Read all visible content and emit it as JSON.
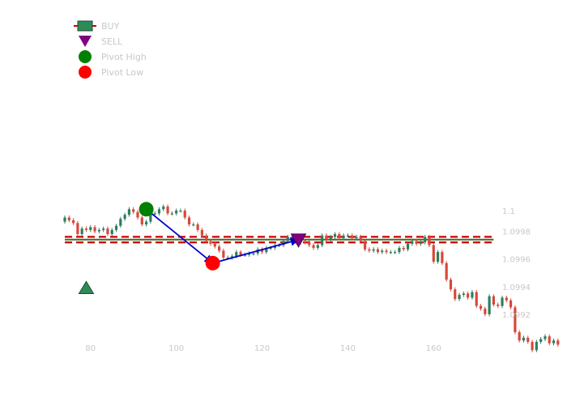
{
  "chart_data": {
    "type": "candlestick",
    "title": "",
    "xlabel": "",
    "ylabel": "",
    "xlim": [
      74,
      176
    ],
    "ylim": [
      1.09915,
      1.10085
    ],
    "x_ticks": [
      {
        "value": 80,
        "label": "80"
      },
      {
        "value": 100,
        "label": "100"
      },
      {
        "value": 120,
        "label": "120"
      },
      {
        "value": 140,
        "label": "140"
      },
      {
        "value": 160,
        "label": "160"
      }
    ],
    "y_ticks": [
      {
        "value": 1.1,
        "label": "1.1"
      },
      {
        "value": 1.09985,
        "label": "1.0998"
      },
      {
        "value": 1.09965,
        "label": "1.0996"
      },
      {
        "value": 1.09945,
        "label": "1.0994"
      },
      {
        "value": 1.09925,
        "label": "1.0992"
      }
    ],
    "y_axis_position": "right",
    "grid": false,
    "colors": {
      "up": "#2e7d5e",
      "down": "#d9473a",
      "buy": "#2e8b57",
      "sell": "#800080",
      "pivot_high": "#008000",
      "pivot_low": "#ff0000",
      "zigzag": "#0000cd",
      "level": "#556b2f",
      "band": "#cc0000"
    },
    "candles": {
      "x_start": 74,
      "opens": [
        1.09992,
        1.09995,
        1.09993,
        1.09991,
        1.09983,
        1.09987,
        1.09986,
        1.09988,
        1.09985,
        1.09986,
        1.09987,
        1.09983,
        1.09986,
        1.09989,
        1.09994,
        1.09997,
        1.10001,
        1.09999,
        1.09995,
        1.0999,
        1.09992,
        1.09998,
        1.09998,
        1.10001,
        1.10003,
        1.09998,
        1.09998,
        1.1,
        1.1,
        1.09995,
        1.0999,
        1.0999,
        1.09986,
        1.09982,
        1.09978,
        1.09976,
        1.09974,
        1.09971,
        1.09966,
        1.09966,
        1.09967,
        1.0997,
        1.09968,
        1.09968,
        1.09969,
        1.09969,
        1.09972,
        1.0997,
        1.09973,
        1.09973,
        1.09975,
        1.09975,
        1.09978,
        1.09981,
        1.09979,
        1.09977,
        1.09978,
        1.09977,
        1.09975,
        1.09973,
        1.09975,
        1.09982,
        1.09979,
        1.09981,
        1.09983,
        1.0998,
        1.09982,
        1.09982,
        1.0998,
        1.09981,
        1.09978,
        1.09972,
        1.09971,
        1.09972,
        1.0997,
        1.09971,
        1.0997,
        1.0997,
        1.0997,
        1.09973,
        1.09972,
        1.09976,
        1.09978,
        1.09976,
        1.09977,
        1.09981,
        1.09975,
        1.09963,
        1.0997,
        1.09962,
        1.0995,
        1.09943,
        1.09936,
        1.09939,
        1.0994,
        1.09937,
        1.09941,
        1.09931,
        1.09929,
        1.09925,
        1.09938,
        1.09932,
        1.09931,
        1.09937,
        1.09935,
        1.0993,
        1.09912,
        1.09906,
        1.09908,
        1.09905,
        1.09899,
        1.09905,
        1.09907,
        1.09909,
        1.09904,
        1.09906
      ],
      "closes": [
        1.09995,
        1.09993,
        1.09991,
        1.09983,
        1.09987,
        1.09986,
        1.09988,
        1.09985,
        1.09986,
        1.09987,
        1.09983,
        1.09986,
        1.09989,
        1.09994,
        1.09997,
        1.10001,
        1.09999,
        1.09995,
        1.0999,
        1.09992,
        1.09998,
        1.09998,
        1.10001,
        1.10003,
        1.09998,
        1.09998,
        1.1,
        1.1,
        1.09995,
        1.0999,
        1.0999,
        1.09986,
        1.09982,
        1.09978,
        1.09976,
        1.09974,
        1.09971,
        1.09966,
        1.09966,
        1.09967,
        1.0997,
        1.09968,
        1.09968,
        1.09969,
        1.09969,
        1.09972,
        1.0997,
        1.09973,
        1.09973,
        1.09975,
        1.09975,
        1.09978,
        1.09981,
        1.09979,
        1.09977,
        1.09978,
        1.09977,
        1.09975,
        1.09973,
        1.09975,
        1.09982,
        1.09979,
        1.09981,
        1.09983,
        1.0998,
        1.09982,
        1.09982,
        1.0998,
        1.09981,
        1.09978,
        1.09972,
        1.09971,
        1.09972,
        1.0997,
        1.09971,
        1.0997,
        1.0997,
        1.0997,
        1.09973,
        1.09972,
        1.09976,
        1.09978,
        1.09976,
        1.09977,
        1.09981,
        1.09975,
        1.09963,
        1.0997,
        1.09962,
        1.0995,
        1.09943,
        1.09936,
        1.09939,
        1.0994,
        1.09937,
        1.09941,
        1.09931,
        1.09929,
        1.09925,
        1.09938,
        1.09932,
        1.09931,
        1.09937,
        1.09935,
        1.0993,
        1.09912,
        1.09906,
        1.09908,
        1.09905,
        1.09899,
        1.09905,
        1.09907,
        1.09909,
        1.09904,
        1.09906,
        1.09903
      ]
    },
    "signals": [
      {
        "type": "BUY",
        "x": 79,
        "y": 1.09944
      },
      {
        "type": "SELL",
        "x": 128.5,
        "y": 1.09979
      }
    ],
    "pivots": [
      {
        "type": "Pivot High",
        "x": 93,
        "y": 1.10001
      },
      {
        "type": "Pivot Low",
        "x": 108.5,
        "y": 1.09962
      }
    ],
    "zigzag": [
      [
        93,
        1.10001
      ],
      [
        108.5,
        1.09962
      ],
      [
        128.5,
        1.09979
      ]
    ],
    "horizontal_lines": [
      {
        "y": 1.09981,
        "style": "dashed",
        "role": "band"
      },
      {
        "y": 1.09979,
        "style": "solid",
        "role": "level"
      },
      {
        "y": 1.09977,
        "style": "dashed",
        "role": "band"
      }
    ],
    "lines_x_range": [
      74,
      174
    ],
    "legend": {
      "position": "top-left",
      "entries": [
        {
          "label": "BUY",
          "marker": "buy"
        },
        {
          "label": "SELL",
          "marker": "sell"
        },
        {
          "label": "Pivot High",
          "marker": "pivot_high"
        },
        {
          "label": "Pivot Low",
          "marker": "pivot_low"
        }
      ]
    }
  }
}
